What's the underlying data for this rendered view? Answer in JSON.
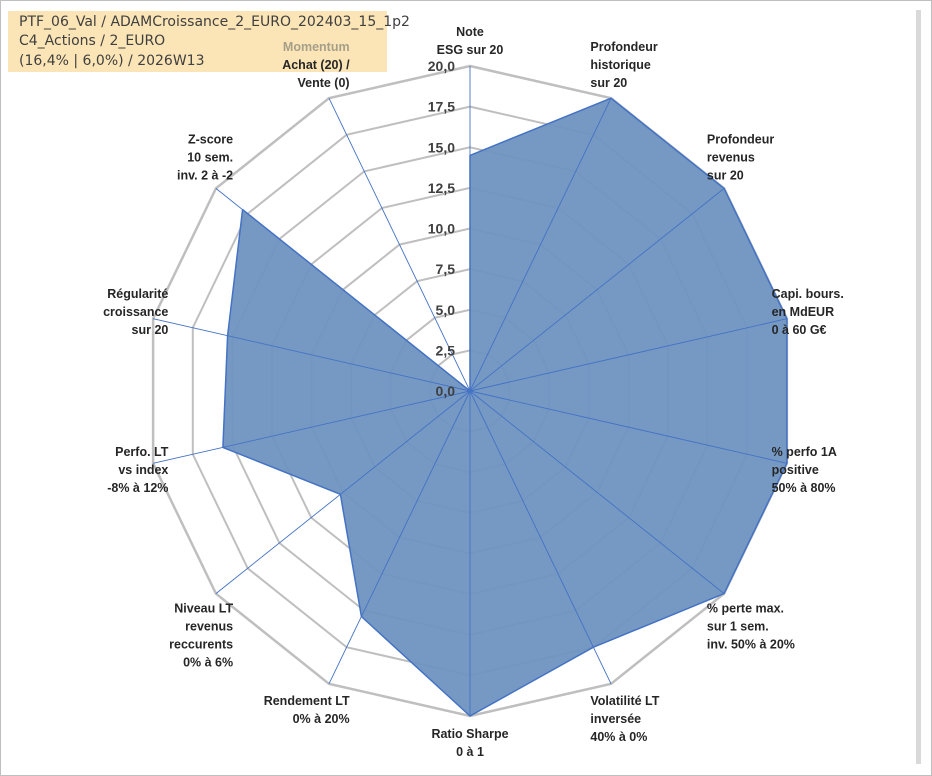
{
  "info": {
    "line1": "PTF_06_Val / ADAMCroissance_2_EURO_202403_15_1p2",
    "line2": "C4_Actions / 2_EURO",
    "line3": "(16,4% | 6,0%) / 2026W13"
  },
  "colors": {
    "fill": "#6f93c1",
    "stroke": "#4472c4",
    "grid": "#bfbfbf",
    "spoke": "#4472c4",
    "info_bg": "#fbe5b6"
  },
  "chart_data": {
    "type": "radar",
    "title": "",
    "rmin": 0,
    "rmax": 20,
    "ticks": [
      "0,0",
      "2,5",
      "5,0",
      "7,5",
      "10,0",
      "12,5",
      "15,0",
      "17,5",
      "20,0"
    ],
    "axes": [
      {
        "lines": [
          "Note",
          "ESG sur 20"
        ],
        "value": 14.5
      },
      {
        "lines": [
          "Profondeur",
          "historique",
          "sur 20"
        ],
        "value": 20
      },
      {
        "lines": [
          "Profondeur",
          "revenus",
          "sur 20"
        ],
        "value": 20
      },
      {
        "lines": [
          "Capi. bours.",
          "en MdEUR",
          "0 à 60 G€"
        ],
        "value": 20
      },
      {
        "lines": [
          "% perfo 1A",
          "positive",
          "50% à 80%"
        ],
        "value": 20
      },
      {
        "lines": [
          "% perte max.",
          "sur 1 sem.",
          "inv. 50% à 20%"
        ],
        "value": 20
      },
      {
        "lines": [
          "Volatilité LT",
          "inversée",
          "40% à 0%"
        ],
        "value": 17.5
      },
      {
        "lines": [
          "Ratio Sharpe",
          "0 à 1"
        ],
        "value": 20
      },
      {
        "lines": [
          "Rendement LT",
          "0% à 20%"
        ],
        "value": 15.4
      },
      {
        "lines": [
          "Niveau LT",
          "revenus",
          "reccurents",
          "0% à 6%"
        ],
        "value": 10.2
      },
      {
        "lines": [
          "Perfo. LT",
          "vs index",
          "-8% à 12%"
        ],
        "value": 15.6
      },
      {
        "lines": [
          "Régularité",
          "croissance",
          "sur 20"
        ],
        "value": 15.3
      },
      {
        "lines": [
          "Z-score",
          "10 sem.",
          "inv. 2 à -2"
        ],
        "value": 17.9
      },
      {
        "lines": [
          "Momentum",
          "Achat (20) /",
          "Vente (0)"
        ],
        "value": 0
      }
    ]
  }
}
